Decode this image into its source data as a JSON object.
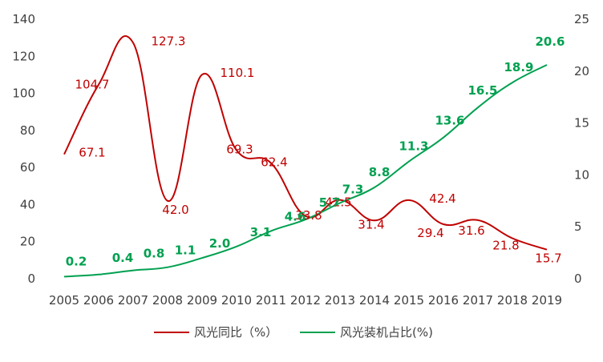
{
  "chart_data": {
    "type": "line",
    "categories": [
      "2005",
      "2006",
      "2007",
      "2008",
      "2009",
      "2010",
      "2011",
      "2012",
      "2013",
      "2014",
      "2015",
      "2016",
      "2017",
      "2018",
      "2019"
    ],
    "y_left": {
      "min": 0,
      "max": 140,
      "ticks": [
        "0",
        "20",
        "40",
        "60",
        "80",
        "100",
        "120",
        "140"
      ]
    },
    "y_right": {
      "min": 0,
      "max": 25,
      "ticks": [
        "0",
        "5",
        "10",
        "15",
        "20",
        "25"
      ]
    },
    "grid": false,
    "legend_position": "bottom",
    "series": [
      {
        "name": "风光同比（%）",
        "axis": "left",
        "color": "#c00000",
        "values": [
          67.1,
          104.7,
          127.3,
          42.0,
          110.1,
          69.3,
          62.4,
          33.8,
          42.5,
          31.4,
          42.4,
          29.4,
          31.6,
          21.8,
          15.7
        ],
        "labels": [
          "67.1",
          "104.7",
          "127.3",
          "42.0",
          "110.1",
          "69.3",
          "62.4",
          "33.8",
          "42.5",
          "31.4",
          "42.4",
          "29.4",
          "31.6",
          "21.8",
          "15.7"
        ]
      },
      {
        "name": "风光装机占比(%)",
        "axis": "right",
        "color": "#00a050",
        "values": [
          0.2,
          0.4,
          0.8,
          1.1,
          2.0,
          3.1,
          4.6,
          5.7,
          7.3,
          8.8,
          11.3,
          13.6,
          16.5,
          18.9,
          20.6
        ],
        "labels": [
          "0.2",
          "0.4",
          "0.8",
          "1.1",
          "2.0",
          "3.1",
          "4.6",
          "5.7",
          "7.3",
          "8.8",
          "11.3",
          "13.6",
          "16.5",
          "18.9",
          "20.6"
        ]
      }
    ]
  }
}
